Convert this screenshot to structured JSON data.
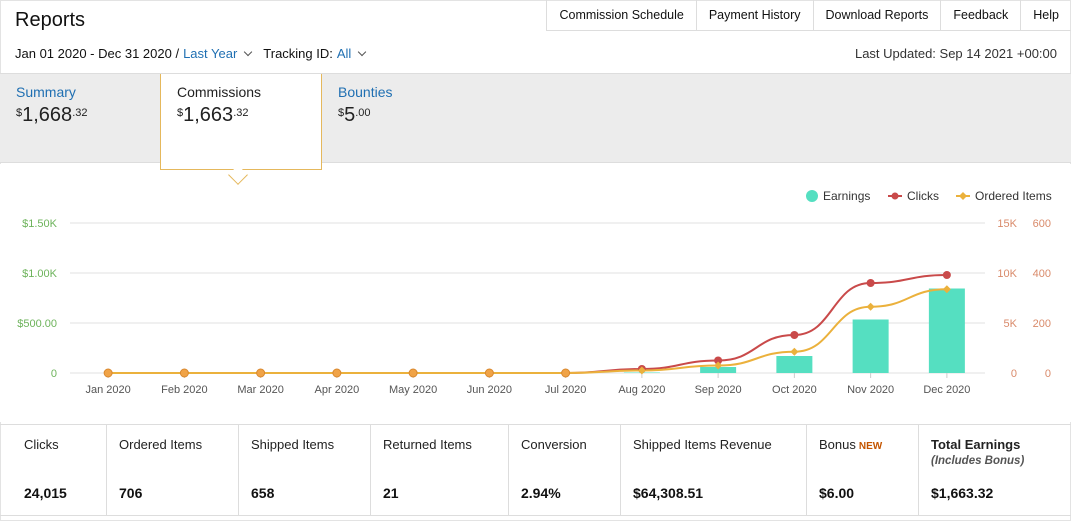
{
  "page": {
    "title": "Reports"
  },
  "topnav": [
    "Commission Schedule",
    "Payment History",
    "Download Reports",
    "Feedback",
    "Help"
  ],
  "filters": {
    "date_range": "Jan 01 2020 - Dec 31 2020 /",
    "period": "Last Year",
    "tracking_label": "Tracking ID:",
    "tracking_value": "All"
  },
  "last_updated": "Last Updated: Sep 14 2021 +00:00",
  "tabs": [
    {
      "label": "Summary",
      "dollars": "1,668",
      "cents": ".32",
      "symbol": "$"
    },
    {
      "label": "Commissions",
      "dollars": "1,663",
      "cents": ".32",
      "symbol": "$"
    },
    {
      "label": "Bounties",
      "dollars": "5",
      "cents": ".00",
      "symbol": "$"
    }
  ],
  "chart_data": {
    "type": "bar+line",
    "categories": [
      "Jan 2020",
      "Feb 2020",
      "Mar 2020",
      "Apr 2020",
      "May 2020",
      "Jun 2020",
      "Jul 2020",
      "Aug 2020",
      "Sep 2020",
      "Oct 2020",
      "Nov 2020",
      "Dec 2020"
    ],
    "legend": [
      "Earnings",
      "Clicks",
      "Ordered Items"
    ],
    "legend_position": "top-right",
    "axes": {
      "earnings": {
        "ticks": [
          "0",
          "$500.00",
          "$1.00K",
          "$1.50K"
        ],
        "range": [
          0,
          1500
        ]
      },
      "clicks": {
        "ticks": [
          "0",
          "5K",
          "10K",
          "15K"
        ],
        "range": [
          0,
          15000
        ]
      },
      "ordered_items": {
        "ticks": [
          "0",
          "200",
          "400",
          "600"
        ],
        "range": [
          0,
          600
        ]
      }
    },
    "series": [
      {
        "name": "Earnings",
        "type": "bar",
        "color": "#55dfc1",
        "values": [
          0,
          0,
          0,
          0,
          0,
          0,
          0,
          5,
          60,
          170,
          535,
          845
        ]
      },
      {
        "name": "Clicks",
        "type": "line",
        "color": "#c94a4a",
        "values": [
          0,
          0,
          0,
          0,
          0,
          0,
          0,
          400,
          1250,
          3800,
          9000,
          9800
        ]
      },
      {
        "name": "Ordered Items",
        "type": "line",
        "color": "#ebb13c",
        "values": [
          0,
          0,
          0,
          0,
          0,
          0,
          0,
          10,
          30,
          85,
          265,
          335
        ]
      }
    ],
    "grid": true
  },
  "stats": [
    {
      "label": "Clicks",
      "value": "24,015"
    },
    {
      "label": "Ordered Items",
      "value": "706"
    },
    {
      "label": "Shipped Items",
      "value": "658"
    },
    {
      "label": "Returned Items",
      "value": "21"
    },
    {
      "label": "Conversion",
      "value": "2.94%"
    },
    {
      "label": "Shipped Items Revenue",
      "value": "$64,308.51"
    },
    {
      "label": "Bonus",
      "badge": "NEW",
      "value": "$6.00"
    },
    {
      "label": "Total Earnings",
      "sub": "(Includes Bonus)",
      "value": "$1,663.32"
    }
  ]
}
